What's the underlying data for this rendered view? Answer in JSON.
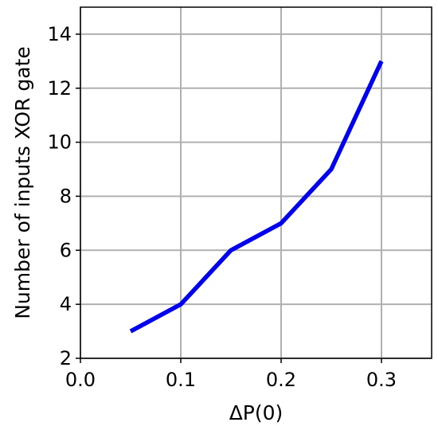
{
  "chart_data": {
    "type": "line",
    "title": "",
    "xlabel": "ΔP(0)",
    "ylabel": "Number of inputs XOR gate",
    "xlim": [
      0.0,
      0.35
    ],
    "ylim": [
      2,
      15
    ],
    "xticks": [
      0.0,
      0.1,
      0.2,
      0.3
    ],
    "xtick_labels": [
      "0.0",
      "0.1",
      "0.2",
      "0.3"
    ],
    "yticks": [
      2,
      4,
      6,
      8,
      10,
      12,
      14
    ],
    "ytick_labels": [
      "2",
      "4",
      "6",
      "8",
      "10",
      "12",
      "14"
    ],
    "grid": true,
    "legend": "none",
    "series": [
      {
        "color": "#0000ee",
        "x": [
          0.05,
          0.1,
          0.15,
          0.2,
          0.25,
          0.3
        ],
        "y": [
          3,
          4,
          6,
          7,
          9,
          13
        ]
      }
    ]
  }
}
